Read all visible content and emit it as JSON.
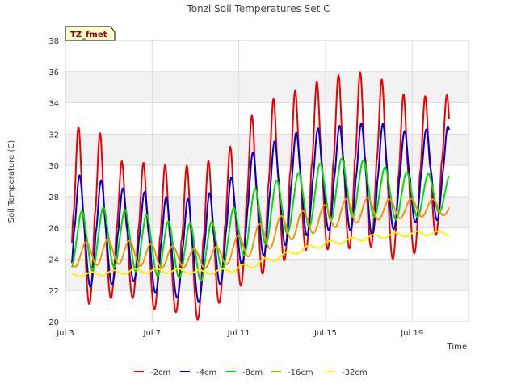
{
  "chart_data": {
    "type": "line",
    "title": "Tonzi Soil Temperatures Set C",
    "xlabel": "Time",
    "ylabel": "Soil Temperature (C)",
    "site_badge": "TZ_fmet",
    "x_unit": "days",
    "xlim": [
      3.0,
      21.6
    ],
    "ylim": [
      20,
      38
    ],
    "y_ticks": [
      20,
      22,
      24,
      26,
      28,
      30,
      32,
      34,
      36,
      38
    ],
    "x_ticks": [
      {
        "label": "Jul 3",
        "day": 3
      },
      {
        "label": "Jul 7",
        "day": 7
      },
      {
        "label": "Jul 11",
        "day": 11
      },
      {
        "label": "Jul 15",
        "day": 15
      },
      {
        "label": "Jul 19",
        "day": 19
      }
    ],
    "x_range_days": [
      3.3,
      20.7
    ],
    "grid": true,
    "legend_position": "bottom",
    "series": [
      {
        "name": "-2cm",
        "color": "#ee0000",
        "phase": 0.6,
        "sharpness": 0.5,
        "daily_max": [
          32.3,
          32.8,
          30.3,
          30.2,
          30.1,
          29.9,
          30.2,
          30.5,
          32.8,
          34.1,
          34.6,
          35.2,
          35.7,
          36.0,
          35.9,
          34.6,
          34.4,
          34.5
        ],
        "daily_min": [
          21.2,
          21.1,
          21.6,
          21.5,
          20.6,
          20.6,
          20.0,
          21.5,
          22.5,
          23.2,
          24.1,
          24.7,
          24.6,
          24.7,
          24.8,
          23.8,
          24.5,
          25.8
        ]
      },
      {
        "name": "-4cm",
        "color": "#0000cc",
        "phase": 0.65,
        "sharpness": 0.3,
        "daily_max": [
          29.4,
          29.3,
          28.6,
          28.4,
          28.1,
          27.8,
          28.1,
          28.5,
          30.6,
          31.3,
          32.0,
          32.3,
          32.5,
          32.6,
          32.9,
          32.2,
          32.2,
          32.5
        ],
        "daily_min": [
          22.3,
          22.2,
          22.4,
          22.6,
          21.7,
          21.5,
          21.2,
          22.6,
          23.8,
          24.3,
          25.0,
          25.6,
          25.9,
          25.8,
          25.4,
          26.0,
          26.4,
          26.5
        ]
      },
      {
        "name": "-8cm",
        "color": "#00dd00",
        "phase": 0.75,
        "sharpness": 0.1,
        "daily_max": [
          26.8,
          27.4,
          27.2,
          27.1,
          26.5,
          26.3,
          26.3,
          26.5,
          28.2,
          28.9,
          29.2,
          29.9,
          30.4,
          30.5,
          30.1,
          29.6,
          29.5,
          29.4
        ],
        "daily_min": [
          23.4,
          23.3,
          23.5,
          23.2,
          22.9,
          22.8,
          22.6,
          23.4,
          24.3,
          25.0,
          25.7,
          26.1,
          26.5,
          26.7,
          26.7,
          26.5,
          26.7,
          27.0
        ]
      },
      {
        "name": "-16cm",
        "color": "#ee9900",
        "phase": 0.95,
        "sharpness": 0.0,
        "daily_max": [
          24.9,
          25.2,
          25.3,
          25.1,
          24.9,
          24.8,
          24.6,
          24.9,
          25.8,
          26.5,
          26.9,
          27.2,
          27.6,
          28.0,
          27.9,
          27.8,
          27.9,
          27.8
        ],
        "daily_min": [
          23.5,
          23.6,
          23.7,
          23.6,
          23.4,
          23.5,
          23.4,
          23.6,
          24.1,
          24.6,
          25.2,
          25.6,
          26.0,
          26.3,
          26.5,
          26.6,
          26.7,
          26.8
        ]
      },
      {
        "name": "-32cm",
        "color": "#ffee00",
        "phase": 1.2,
        "sharpness": 0.0,
        "daily_max": [
          23.1,
          23.2,
          23.3,
          23.4,
          23.4,
          23.4,
          23.3,
          23.4,
          23.7,
          24.1,
          24.5,
          24.9,
          25.2,
          25.4,
          25.6,
          25.7,
          25.8,
          25.8
        ],
        "daily_min": [
          22.9,
          22.9,
          23.0,
          23.1,
          23.1,
          23.1,
          23.0,
          23.1,
          23.3,
          23.7,
          24.2,
          24.6,
          24.9,
          25.1,
          25.3,
          25.4,
          25.5,
          25.5
        ]
      }
    ]
  }
}
